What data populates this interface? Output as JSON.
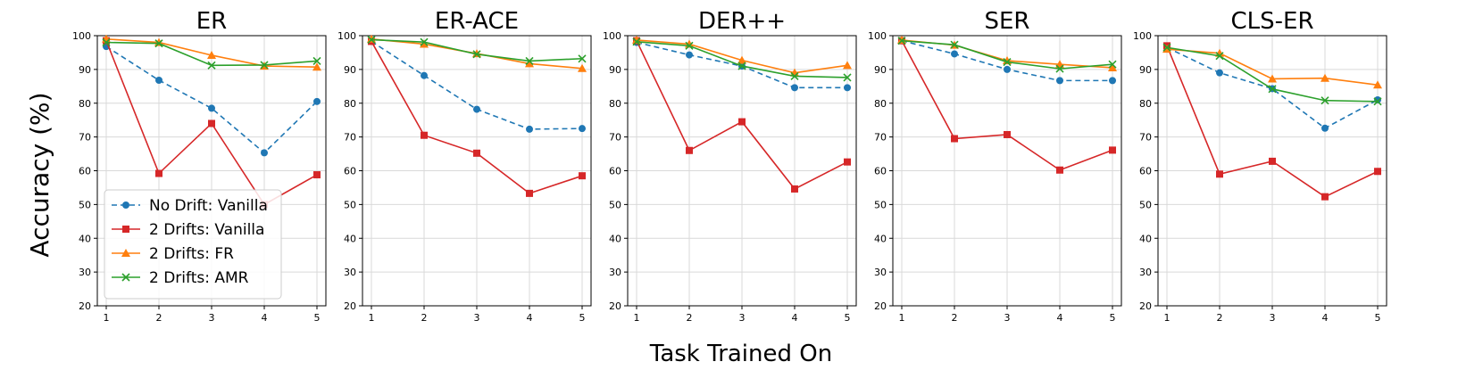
{
  "figure": {
    "ylabel": "Accuracy (%)",
    "xlabel": "Task Trained On"
  },
  "colors": {
    "no_drift_vanilla": "#1f77b4",
    "drifts_vanilla": "#d62728",
    "drifts_fr": "#ff7f0e",
    "drifts_amr": "#2ca02c",
    "grid": "#d9d9d9"
  },
  "legend": {
    "location": "lower-left of first panel",
    "entries": [
      "No Drift: Vanilla",
      "2 Drifts: Vanilla",
      "2 Drifts: FR",
      "2 Drifts: AMR"
    ]
  },
  "chart_data": [
    {
      "type": "line",
      "title": "ER",
      "x": [
        1,
        2,
        3,
        4,
        5
      ],
      "ylim": [
        20,
        100
      ],
      "xticks": [
        "1",
        "2",
        "3",
        "4",
        "5"
      ],
      "yticks": [
        "20",
        "30",
        "40",
        "50",
        "60",
        "70",
        "80",
        "90",
        "100"
      ],
      "series": [
        {
          "name": "No Drift: Vanilla",
          "values": [
            96.8,
            86.8,
            78.5,
            65.3,
            80.5
          ]
        },
        {
          "name": "2 Drifts: Vanilla",
          "values": [
            98.5,
            59.2,
            74.0,
            50.0,
            58.8
          ]
        },
        {
          "name": "2 Drifts: FR",
          "values": [
            99.0,
            98.0,
            94.2,
            91.0,
            90.7
          ]
        },
        {
          "name": "2 Drifts: AMR",
          "values": [
            98.0,
            97.7,
            91.2,
            91.3,
            92.5
          ]
        }
      ]
    },
    {
      "type": "line",
      "title": "ER-ACE",
      "x": [
        1,
        2,
        3,
        4,
        5
      ],
      "ylim": [
        20,
        100
      ],
      "xticks": [
        "1",
        "2",
        "3",
        "4",
        "5"
      ],
      "yticks": [
        "20",
        "30",
        "40",
        "50",
        "60",
        "70",
        "80",
        "90",
        "100"
      ],
      "series": [
        {
          "name": "No Drift: Vanilla",
          "values": [
            98.3,
            88.2,
            78.2,
            72.3,
            72.5
          ]
        },
        {
          "name": "2 Drifts: Vanilla",
          "values": [
            98.3,
            70.5,
            65.2,
            53.3,
            58.5
          ]
        },
        {
          "name": "2 Drifts: FR",
          "values": [
            99.0,
            97.5,
            94.7,
            91.7,
            90.3
          ]
        },
        {
          "name": "2 Drifts: AMR",
          "values": [
            98.8,
            98.1,
            94.5,
            92.5,
            93.2
          ]
        }
      ]
    },
    {
      "type": "line",
      "title": "DER++",
      "x": [
        1,
        2,
        3,
        4,
        5
      ],
      "ylim": [
        20,
        100
      ],
      "xticks": [
        "1",
        "2",
        "3",
        "4",
        "5"
      ],
      "yticks": [
        "20",
        "30",
        "40",
        "50",
        "60",
        "70",
        "80",
        "90",
        "100"
      ],
      "series": [
        {
          "name": "No Drift: Vanilla",
          "values": [
            98.0,
            94.3,
            91.0,
            84.6,
            84.6
          ]
        },
        {
          "name": "2 Drifts: Vanilla",
          "values": [
            98.5,
            66.0,
            74.5,
            54.6,
            62.6
          ]
        },
        {
          "name": "2 Drifts: FR",
          "values": [
            98.7,
            97.5,
            92.7,
            89.0,
            91.2
          ]
        },
        {
          "name": "2 Drifts: AMR",
          "values": [
            98.2,
            97.0,
            91.0,
            88.0,
            87.6
          ]
        }
      ]
    },
    {
      "type": "line",
      "title": "SER",
      "x": [
        1,
        2,
        3,
        4,
        5
      ],
      "ylim": [
        20,
        100
      ],
      "xticks": [
        "1",
        "2",
        "3",
        "4",
        "5"
      ],
      "yticks": [
        "20",
        "30",
        "40",
        "50",
        "60",
        "70",
        "80",
        "90",
        "100"
      ],
      "series": [
        {
          "name": "No Drift: Vanilla",
          "values": [
            98.5,
            94.6,
            90.0,
            86.7,
            86.7
          ]
        },
        {
          "name": "2 Drifts: Vanilla",
          "values": [
            98.5,
            69.5,
            70.7,
            60.2,
            66.1
          ]
        },
        {
          "name": "2 Drifts: FR",
          "values": [
            98.7,
            97.2,
            92.6,
            91.5,
            90.5
          ]
        },
        {
          "name": "2 Drifts: AMR",
          "values": [
            98.5,
            97.3,
            92.2,
            90.2,
            91.5
          ]
        }
      ]
    },
    {
      "type": "line",
      "title": "CLS-ER",
      "x": [
        1,
        2,
        3,
        4,
        5
      ],
      "ylim": [
        20,
        100
      ],
      "xticks": [
        "1",
        "2",
        "3",
        "4",
        "5"
      ],
      "yticks": [
        "20",
        "30",
        "40",
        "50",
        "60",
        "70",
        "80",
        "90",
        "100"
      ],
      "series": [
        {
          "name": "No Drift: Vanilla",
          "values": [
            96.5,
            89.0,
            84.3,
            72.6,
            81.0
          ]
        },
        {
          "name": "2 Drifts: Vanilla",
          "values": [
            97.0,
            59.0,
            62.8,
            52.3,
            59.8
          ]
        },
        {
          "name": "2 Drifts: FR",
          "values": [
            96.0,
            94.8,
            87.2,
            87.4,
            85.4
          ]
        },
        {
          "name": "2 Drifts: AMR",
          "values": [
            96.5,
            94.0,
            84.2,
            80.8,
            80.5
          ]
        }
      ]
    }
  ]
}
